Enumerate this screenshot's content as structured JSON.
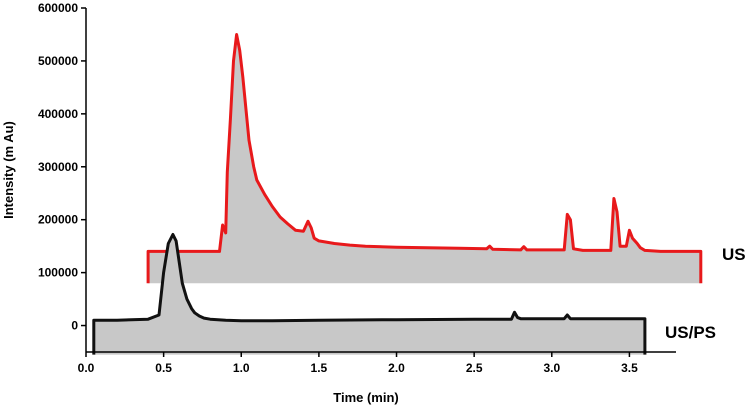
{
  "chart_data": {
    "type": "area",
    "xlabel": "Time (min)",
    "ylabel": "Intensity (m Au)",
    "xlim": [
      0.0,
      3.8
    ],
    "ylim": [
      -50000,
      600000
    ],
    "xticks": [
      0.0,
      0.5,
      1.0,
      1.5,
      2.0,
      2.5,
      3.0,
      3.5
    ],
    "xtick_labels": [
      "0.0",
      "0.5",
      "1.0",
      "1.5",
      "2.0",
      "2.5",
      "3.0",
      "3.5"
    ],
    "yticks": [
      0,
      100000,
      200000,
      300000,
      400000,
      500000,
      600000
    ],
    "ytick_labels": [
      "0",
      "100000",
      "200000",
      "300000",
      "400000",
      "500000",
      "600000"
    ],
    "grid": false,
    "fill_color": "#c8c8c8",
    "series": [
      {
        "name": "US",
        "color": "#e8191b",
        "baseline": 80000,
        "x": [
          0.4,
          0.4,
          0.86,
          0.88,
          0.9,
          0.91,
          0.93,
          0.95,
          0.97,
          0.99,
          1.01,
          1.03,
          1.05,
          1.08,
          1.1,
          1.15,
          1.2,
          1.25,
          1.3,
          1.35,
          1.4,
          1.43,
          1.45,
          1.47,
          1.5,
          1.6,
          1.7,
          1.8,
          2.0,
          2.2,
          2.4,
          2.58,
          2.6,
          2.62,
          2.8,
          2.82,
          2.84,
          3.08,
          3.1,
          3.12,
          3.14,
          3.2,
          3.38,
          3.4,
          3.42,
          3.44,
          3.48,
          3.5,
          3.52,
          3.55,
          3.57,
          3.6,
          3.7,
          3.8,
          3.96,
          3.96
        ],
        "values": [
          80000,
          140000,
          140000,
          190000,
          175000,
          290000,
          390000,
          500000,
          550000,
          520000,
          470000,
          410000,
          350000,
          300000,
          275000,
          248000,
          225000,
          205000,
          192000,
          180000,
          178000,
          197000,
          185000,
          165000,
          160000,
          155000,
          152000,
          150000,
          148000,
          147000,
          146000,
          145000,
          150000,
          144000,
          143000,
          149000,
          143000,
          143000,
          210000,
          200000,
          145000,
          142000,
          142000,
          240000,
          215000,
          150000,
          150000,
          180000,
          165000,
          155000,
          147000,
          142000,
          140000,
          140000,
          140000,
          80000
        ]
      },
      {
        "name": "US/PS",
        "color": "#111111",
        "baseline": -55000,
        "x": [
          0.05,
          0.05,
          0.2,
          0.4,
          0.47,
          0.5,
          0.53,
          0.56,
          0.58,
          0.6,
          0.62,
          0.65,
          0.68,
          0.7,
          0.73,
          0.76,
          0.8,
          0.9,
          1.0,
          1.2,
          1.5,
          2.0,
          2.5,
          2.74,
          2.76,
          2.78,
          2.8,
          3.08,
          3.1,
          3.12,
          3.3,
          3.5,
          3.6,
          3.6
        ],
        "values": [
          -55000,
          10000,
          10000,
          12000,
          20000,
          100000,
          155000,
          172000,
          160000,
          120000,
          80000,
          50000,
          32000,
          24000,
          18000,
          14000,
          12000,
          10000,
          9000,
          9000,
          10000,
          11000,
          12000,
          12000,
          25000,
          15000,
          13000,
          13000,
          20000,
          13000,
          13000,
          13000,
          13000,
          -55000
        ]
      }
    ]
  }
}
